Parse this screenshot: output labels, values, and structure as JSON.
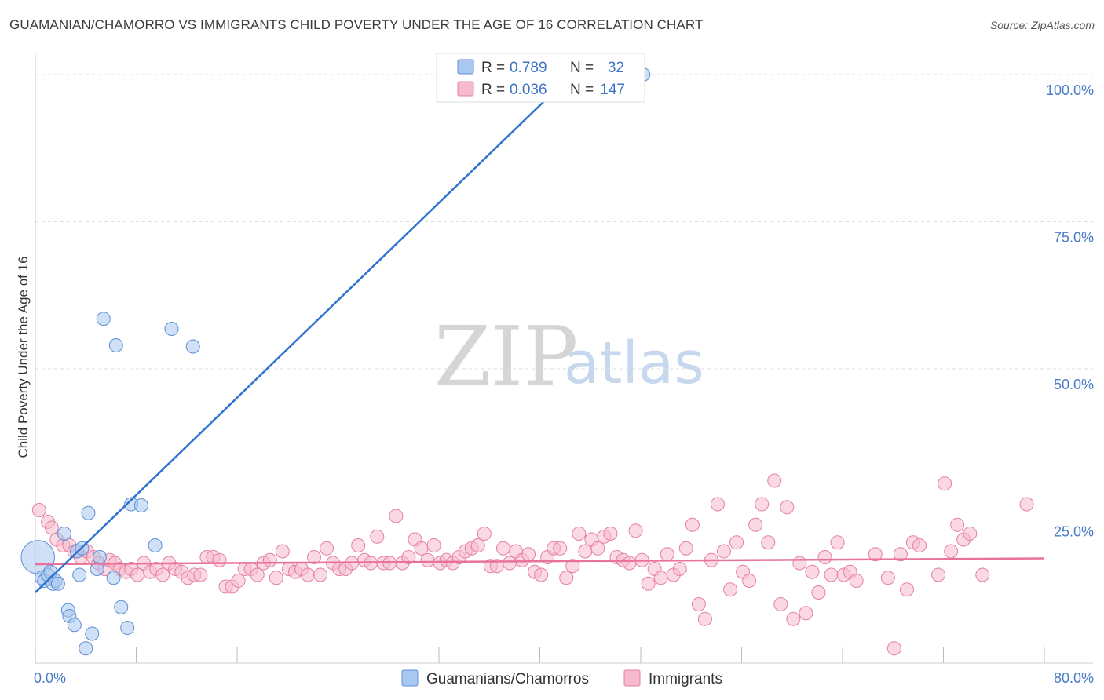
{
  "chart_data": {
    "type": "scatter",
    "title": "GUAMANIAN/CHAMORRO VS IMMIGRANTS CHILD POVERTY UNDER THE AGE OF 16 CORRELATION CHART",
    "source": "Source: ZipAtlas.com",
    "xlabel": "",
    "ylabel": "Child Poverty Under the Age of 16",
    "xlim": [
      0,
      80
    ],
    "ylim": [
      0,
      102
    ],
    "x_tick_labels": [
      "0.0%",
      "80.0%"
    ],
    "y_ticks": [
      25,
      50,
      75,
      100
    ],
    "y_tick_labels": [
      "25.0%",
      "50.0%",
      "75.0%",
      "100.0%"
    ],
    "watermark": {
      "zip": "ZIP",
      "atlas": "atlas"
    },
    "colors": {
      "guam_fill": "#a9c8f0",
      "guam_stroke": "#5b8fd6",
      "guam_line": "#2f72d2",
      "imm_fill": "#f7b9cc",
      "imm_stroke": "#e580a3",
      "imm_line": "#e8729c",
      "axis_text": "#4a7bc8",
      "grid": "#dddddd"
    },
    "stats": [
      {
        "r_label": "R =",
        "r_value": "0.789",
        "n_label": "N =",
        "n_value": "32"
      },
      {
        "r_label": "R =",
        "r_value": "0.036",
        "n_label": "N =",
        "n_value": "147"
      }
    ],
    "legend": [
      "Guamanians/Chamorros",
      "Immigrants"
    ],
    "series": [
      {
        "name": "Guamanians/Chamorros",
        "trend": {
          "x": [
            0,
            43.5
          ],
          "y": [
            12,
            102
          ]
        },
        "points": [
          [
            0.2,
            18,
            2.5
          ],
          [
            0.5,
            14.5,
            1
          ],
          [
            0.7,
            14,
            1
          ],
          [
            1.0,
            15,
            1
          ],
          [
            1.2,
            15.5,
            1
          ],
          [
            1.4,
            13.5,
            1
          ],
          [
            1.6,
            14,
            1
          ],
          [
            1.8,
            13.5,
            1
          ],
          [
            2.3,
            22,
            1
          ],
          [
            2.6,
            9,
            1
          ],
          [
            2.7,
            8,
            1
          ],
          [
            3.1,
            6.5,
            1
          ],
          [
            3.3,
            19,
            1
          ],
          [
            3.5,
            15,
            1
          ],
          [
            3.7,
            19.5,
            1
          ],
          [
            4.0,
            2.5,
            1
          ],
          [
            4.2,
            25.5,
            1
          ],
          [
            4.5,
            5,
            1
          ],
          [
            4.9,
            16,
            1
          ],
          [
            5.1,
            18,
            1
          ],
          [
            5.4,
            58.5,
            1
          ],
          [
            6.2,
            14.5,
            1
          ],
          [
            6.4,
            54,
            1
          ],
          [
            6.8,
            9.5,
            1
          ],
          [
            7.3,
            6,
            1
          ],
          [
            7.6,
            27,
            1
          ],
          [
            8.4,
            26.8,
            1
          ],
          [
            9.5,
            20,
            1
          ],
          [
            10.8,
            56.8,
            1
          ],
          [
            12.5,
            53.8,
            1
          ],
          [
            48.2,
            100,
            1
          ]
        ]
      },
      {
        "name": "Immigrants",
        "trend": {
          "x": [
            0,
            80
          ],
          "y": [
            16.8,
            17.8
          ]
        },
        "points": [
          [
            0.3,
            26
          ],
          [
            1.0,
            24
          ],
          [
            1.3,
            23
          ],
          [
            1.7,
            21
          ],
          [
            2.2,
            20
          ],
          [
            2.7,
            20
          ],
          [
            3.1,
            19
          ],
          [
            3.6,
            18
          ],
          [
            4.1,
            19
          ],
          [
            4.6,
            18
          ],
          [
            5.0,
            17
          ],
          [
            5.5,
            16
          ],
          [
            5.9,
            17.5
          ],
          [
            6.3,
            17
          ],
          [
            6.7,
            16
          ],
          [
            7.2,
            15.5
          ],
          [
            7.6,
            16
          ],
          [
            8.1,
            15
          ],
          [
            8.6,
            17
          ],
          [
            9.1,
            15.5
          ],
          [
            9.6,
            16
          ],
          [
            10.1,
            15
          ],
          [
            10.6,
            17
          ],
          [
            11.1,
            16
          ],
          [
            11.6,
            15.5
          ],
          [
            12.1,
            14.5
          ],
          [
            12.6,
            15
          ],
          [
            13.1,
            15
          ],
          [
            13.6,
            18
          ],
          [
            14.1,
            18
          ],
          [
            14.6,
            17.5
          ],
          [
            15.1,
            13
          ],
          [
            15.6,
            13
          ],
          [
            16.1,
            14
          ],
          [
            16.6,
            16
          ],
          [
            17.1,
            16
          ],
          [
            17.6,
            15
          ],
          [
            18.1,
            17
          ],
          [
            18.6,
            17.5
          ],
          [
            19.1,
            14.5
          ],
          [
            19.6,
            19
          ],
          [
            20.1,
            16
          ],
          [
            20.6,
            15.5
          ],
          [
            21.1,
            16
          ],
          [
            21.6,
            15
          ],
          [
            22.1,
            18
          ],
          [
            22.6,
            15
          ],
          [
            23.1,
            19.5
          ],
          [
            23.6,
            17
          ],
          [
            24.1,
            16
          ],
          [
            24.6,
            16
          ],
          [
            25.1,
            17
          ],
          [
            25.6,
            20
          ],
          [
            26.1,
            17.5
          ],
          [
            26.6,
            17
          ],
          [
            27.1,
            21.5
          ],
          [
            27.6,
            17
          ],
          [
            28.1,
            17
          ],
          [
            28.6,
            25
          ],
          [
            29.1,
            17
          ],
          [
            29.6,
            18
          ],
          [
            30.1,
            21
          ],
          [
            30.6,
            19.5
          ],
          [
            31.1,
            17.5
          ],
          [
            31.6,
            20
          ],
          [
            32.1,
            17
          ],
          [
            32.6,
            17.5
          ],
          [
            33.1,
            17
          ],
          [
            33.6,
            18
          ],
          [
            34.1,
            19
          ],
          [
            34.6,
            19.5
          ],
          [
            35.1,
            20
          ],
          [
            35.6,
            22
          ],
          [
            36.1,
            16.5
          ],
          [
            36.6,
            16.5
          ],
          [
            37.1,
            19.5
          ],
          [
            37.6,
            17
          ],
          [
            38.1,
            19
          ],
          [
            38.6,
            17.5
          ],
          [
            39.1,
            18.5
          ],
          [
            39.6,
            15.5
          ],
          [
            40.1,
            15
          ],
          [
            40.6,
            18
          ],
          [
            41.1,
            19.5
          ],
          [
            41.6,
            19.5
          ],
          [
            42.1,
            14.5
          ],
          [
            42.6,
            16.5
          ],
          [
            43.1,
            22
          ],
          [
            43.6,
            19
          ],
          [
            44.1,
            21
          ],
          [
            44.6,
            19.5
          ],
          [
            45.1,
            21.5
          ],
          [
            45.6,
            22
          ],
          [
            46.1,
            18
          ],
          [
            46.6,
            17.5
          ],
          [
            47.1,
            17
          ],
          [
            47.6,
            22.5
          ],
          [
            48.1,
            17.5
          ],
          [
            48.6,
            13.5
          ],
          [
            49.1,
            16
          ],
          [
            49.6,
            14.5
          ],
          [
            50.1,
            18.5
          ],
          [
            50.6,
            15
          ],
          [
            51.1,
            16
          ],
          [
            51.6,
            19.5
          ],
          [
            52.1,
            23.5
          ],
          [
            52.6,
            10
          ],
          [
            53.1,
            7.5
          ],
          [
            53.6,
            17.5
          ],
          [
            54.1,
            27
          ],
          [
            54.6,
            19
          ],
          [
            55.1,
            12.5
          ],
          [
            55.6,
            20.5
          ],
          [
            56.1,
            15.5
          ],
          [
            56.6,
            14
          ],
          [
            57.1,
            23.5
          ],
          [
            57.6,
            27
          ],
          [
            58.1,
            20.5
          ],
          [
            58.6,
            31
          ],
          [
            59.1,
            10
          ],
          [
            59.6,
            26.5
          ],
          [
            60.1,
            7.5
          ],
          [
            60.6,
            17
          ],
          [
            61.1,
            8.5
          ],
          [
            61.6,
            15.5
          ],
          [
            62.1,
            12
          ],
          [
            62.6,
            18
          ],
          [
            63.1,
            15
          ],
          [
            63.6,
            20.5
          ],
          [
            64.1,
            15
          ],
          [
            64.6,
            15.5
          ],
          [
            65.1,
            14
          ],
          [
            66.6,
            18.5
          ],
          [
            67.6,
            14.5
          ],
          [
            68.1,
            2.5
          ],
          [
            68.6,
            18.5
          ],
          [
            69.1,
            12.5
          ],
          [
            69.6,
            20.5
          ],
          [
            70.1,
            20
          ],
          [
            71.6,
            15
          ],
          [
            72.1,
            30.5
          ],
          [
            72.6,
            19
          ],
          [
            73.1,
            23.5
          ],
          [
            73.6,
            21
          ],
          [
            74.1,
            22
          ],
          [
            75.1,
            15
          ],
          [
            78.6,
            27
          ]
        ]
      }
    ]
  }
}
